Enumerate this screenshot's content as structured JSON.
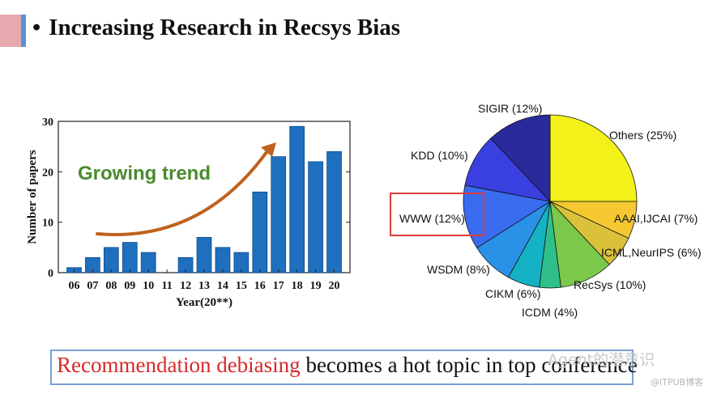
{
  "slide": {
    "bullet": "•",
    "title": "Increasing Research in Recsys Bias",
    "footer_highlight": "Recommendation debiasing",
    "footer_rest": " becomes a hot topic in top conference",
    "watermark": "Agent的潜意识",
    "watermark_sub": "@ITPUB博客"
  },
  "chart_data": [
    {
      "type": "bar",
      "categories": [
        "06",
        "07",
        "08",
        "09",
        "10",
        "11",
        "12",
        "13",
        "14",
        "15",
        "16",
        "17",
        "18",
        "19",
        "20"
      ],
      "values": [
        1,
        3,
        5,
        6,
        4,
        0,
        3,
        7,
        5,
        4,
        16,
        23,
        29,
        22,
        24
      ],
      "xlabel": "Year(20**)",
      "ylabel": "Number of papers",
      "ylim": [
        0,
        30
      ],
      "yticks": [
        0,
        10,
        20,
        30
      ],
      "annotation": "Growing trend",
      "colors": {
        "bar": "#1f6fbf",
        "bar_edge": "#0d4a8a",
        "annotation": "#4a8b2c",
        "arrow": "#c0611f"
      }
    },
    {
      "type": "pie",
      "slices": [
        {
          "label": "Others (25%)",
          "value": 25,
          "color": "#f2f21a"
        },
        {
          "label": "AAAI,IJCAI (7%)",
          "value": 7,
          "color": "#f5c832"
        },
        {
          "label": "ICML,NeurIPS (6%)",
          "value": 6,
          "color": "#d9c13a"
        },
        {
          "label": "RecSys (10%)",
          "value": 10,
          "color": "#7bc84a"
        },
        {
          "label": "ICDM (4%)",
          "value": 4,
          "color": "#2fbf8a"
        },
        {
          "label": "CIKM (6%)",
          "value": 6,
          "color": "#14b2c4"
        },
        {
          "label": "WSDM (8%)",
          "value": 8,
          "color": "#2a92e6"
        },
        {
          "label": "WWW (12%)",
          "value": 12,
          "color": "#3a6cf0"
        },
        {
          "label": "KDD (10%)",
          "value": 10,
          "color": "#3a3fe0"
        },
        {
          "label": "SIGIR (12%)",
          "value": 12,
          "color": "#2a2a9c"
        }
      ],
      "highlight": "WWW (12%)",
      "highlight_color": "#e03a3a"
    }
  ]
}
